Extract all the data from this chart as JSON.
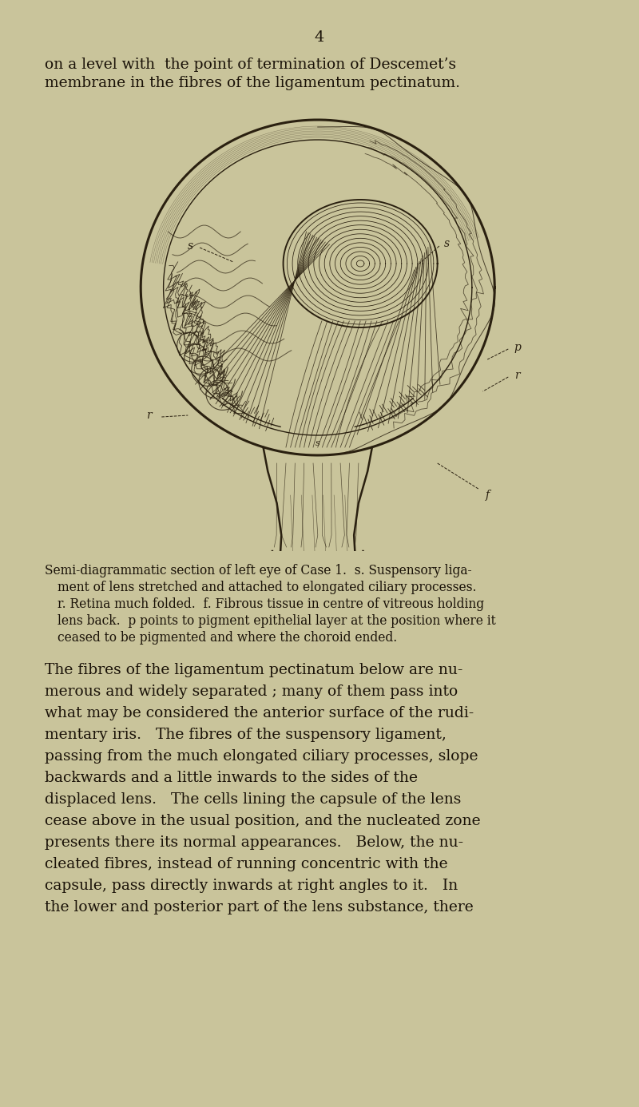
{
  "background_color": "#c9c49b",
  "page_number": "4",
  "top_text_line1": "on a level with  the point of termination of Descemet’s",
  "top_text_line2": "membrane in the fibres of the ligamentum pectinatum.",
  "caption_lines": [
    "Semi-diagrammatic section of left eye of Case 1.  s. Suspensory liga-",
    "    ment of lens stretched and attached to elongated ciliary processes.",
    "    r. Retina much folded.  f. Fibrous tissue in centre of vitreous holding",
    "    lens back.  p points to pigment epithelial layer at the position where it",
    "    ceased to be pigmented and where the choroid ended."
  ],
  "body_text": [
    "The fibres of the ligamentum pectinatum below are nu-",
    "merous and widely separated ; many of them pass into",
    "what may be considered the anterior surface of the rudi-",
    "mentary iris.   The fibres of the suspensory ligament,",
    "passing from the much elongated ciliary processes, slope",
    "backwards and a little inwards to the sides of the",
    "displaced lens.   The cells lining the capsule of the lens",
    "cease above in the usual position, and the nucleated zone",
    "presents there its normal appearances.   Below, the nu-",
    "cleated fibres, instead of running concentric with the",
    "capsule, pass directly inwards at right angles to it.   In",
    "the lower and posterior part of the lens substance, there"
  ],
  "text_color": "#1a1208",
  "draw_color": "#2a2010"
}
